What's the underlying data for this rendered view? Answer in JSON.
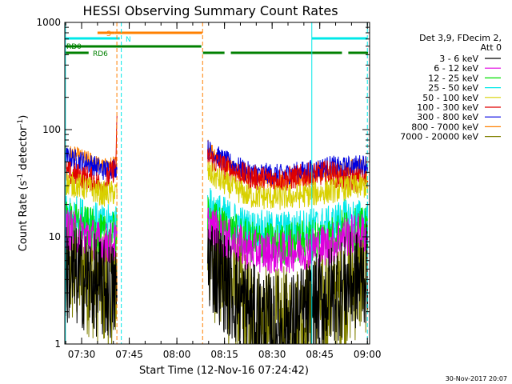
{
  "chart_data": {
    "type": "line",
    "title": "HESSI Observing Summary Count Rates",
    "xlabel": "Start Time (12-Nov-16 07:24:42)",
    "ylabel_main": "Count Rate (s",
    "ylabel_sup1": "-1",
    "ylabel_mid": " detector",
    "ylabel_sup2": "-1",
    "ylabel_end": ")",
    "yscale": "log",
    "ylim": [
      1,
      1000
    ],
    "xlim_minutes": [
      0,
      96
    ],
    "x_ticks": [
      {
        "label": "07:30",
        "m": 5.3
      },
      {
        "label": "07:45",
        "m": 20.3
      },
      {
        "label": "08:00",
        "m": 35.3
      },
      {
        "label": "08:15",
        "m": 50.3
      },
      {
        "label": "08:30",
        "m": 65.3
      },
      {
        "label": "08:45",
        "m": 80.3
      },
      {
        "label": "09:00",
        "m": 95.3
      }
    ],
    "y_ticks": [
      {
        "label": "1",
        "v": 1
      },
      {
        "label": "10",
        "v": 10
      },
      {
        "label": "100",
        "v": 100
      },
      {
        "label": "1000",
        "v": 1000
      }
    ],
    "legend": {
      "header1": "Det 3,9, FDecim 2,",
      "header2": "Att 0",
      "items": [
        {
          "label": "3 - 6 keV",
          "color": "#000000"
        },
        {
          "label": "6 - 12 keV",
          "color": "#e000e0"
        },
        {
          "label": "12 - 25 keV",
          "color": "#00e000"
        },
        {
          "label": "25 - 50 keV",
          "color": "#00e8e8"
        },
        {
          "label": "50 - 100 keV",
          "color": "#d8d000"
        },
        {
          "label": "100 - 300 keV",
          "color": "#e00000"
        },
        {
          "label": "300 - 800 keV",
          "color": "#0000e0"
        },
        {
          "label": "800 - 7000 keV",
          "color": "#ff8000"
        },
        {
          "label": "7000 - 20000 keV",
          "color": "#808000"
        }
      ]
    },
    "flags": [
      {
        "label": "S",
        "color": "#ff8000",
        "segments": [
          [
            10.3,
            15.8
          ],
          [
            15.8,
            43.3
          ]
        ]
      },
      {
        "label": "N",
        "color": "#00e8e8",
        "segments": [
          [
            0,
            17.3
          ],
          [
            77.8,
            95.3
          ]
        ]
      },
      {
        "label": "RD0",
        "color": "#008000",
        "segments": [
          [
            0,
            43.0
          ]
        ]
      },
      {
        "label": "RD6",
        "color": "#008000",
        "segments": [
          [
            0,
            7.5
          ],
          [
            43.5,
            50.3
          ],
          [
            52.3,
            87.3
          ],
          [
            89.3,
            95.5
          ]
        ]
      }
    ],
    "vlines": [
      {
        "m": 0.2,
        "color": "#00e8e8",
        "style": "solid"
      },
      {
        "m": 16.4,
        "color": "#ff8000",
        "style": "dashed"
      },
      {
        "m": 17.8,
        "color": "#00e8e8",
        "style": "dashed"
      },
      {
        "m": 43.4,
        "color": "#ff8000",
        "style": "dashed"
      },
      {
        "m": 77.8,
        "color": "#00e8e8",
        "style": "solid"
      },
      {
        "m": 95.3,
        "color": "#00e8e8",
        "style": "dashed"
      }
    ],
    "orbit_gaps": [
      [
        16.5,
        45.0
      ]
    ],
    "series": [
      {
        "name": "3 - 6 keV",
        "color": "#000000",
        "seg1": [
          [
            0,
            4.5
          ],
          [
            8,
            3.8
          ],
          [
            12,
            3.2
          ],
          [
            16.5,
            3.0
          ]
        ],
        "seg2": [
          [
            45,
            6.5
          ],
          [
            52,
            3.2
          ],
          [
            60,
            1.8
          ],
          [
            65,
            1.5
          ],
          [
            72,
            1.6
          ],
          [
            78,
            2.2
          ],
          [
            86,
            3.2
          ],
          [
            95.5,
            4.5
          ]
        ],
        "noise": 0.12
      },
      {
        "name": "6 - 12 keV",
        "color": "#e000e0",
        "seg1": [
          [
            0,
            12
          ],
          [
            8,
            10
          ],
          [
            12,
            8.5
          ],
          [
            16.5,
            9
          ]
        ],
        "seg2": [
          [
            45,
            13
          ],
          [
            50,
            10
          ],
          [
            58,
            7.5
          ],
          [
            68,
            7
          ],
          [
            78,
            8
          ],
          [
            84,
            8.5
          ],
          [
            87,
            10
          ],
          [
            95.5,
            11
          ]
        ],
        "noise": 0.05
      },
      {
        "name": "12 - 25 keV",
        "color": "#00e000",
        "seg1": [
          [
            0,
            14
          ],
          [
            8,
            12
          ],
          [
            12,
            10
          ],
          [
            16.5,
            11
          ]
        ],
        "seg2": [
          [
            45,
            15
          ],
          [
            50,
            12
          ],
          [
            58,
            9
          ],
          [
            68,
            8.5
          ],
          [
            78,
            9.5
          ],
          [
            84,
            10
          ],
          [
            87,
            11.5
          ],
          [
            95.5,
            12
          ]
        ],
        "noise": 0.05
      },
      {
        "name": "25 - 50 keV",
        "color": "#00e8e8",
        "seg1": [
          [
            0,
            17
          ],
          [
            8,
            15
          ],
          [
            12,
            13
          ],
          [
            16.5,
            14
          ]
        ],
        "seg2": [
          [
            45,
            20
          ],
          [
            50,
            16
          ],
          [
            58,
            12
          ],
          [
            68,
            11.5
          ],
          [
            78,
            12.5
          ],
          [
            84,
            13
          ],
          [
            87,
            15
          ],
          [
            95.5,
            15
          ]
        ],
        "noise": 0.045
      },
      {
        "name": "50 - 100 keV",
        "color": "#d8d000",
        "seg1": [
          [
            0,
            32
          ],
          [
            8,
            28
          ],
          [
            12,
            25
          ],
          [
            16.5,
            26
          ]
        ],
        "seg2": [
          [
            45,
            40
          ],
          [
            50,
            32
          ],
          [
            58,
            24
          ],
          [
            68,
            23
          ],
          [
            78,
            25
          ],
          [
            84,
            27
          ],
          [
            87,
            28
          ],
          [
            95.5,
            30
          ]
        ],
        "noise": 0.03
      },
      {
        "name": "100 - 300 keV",
        "color": "#e00000",
        "seg1": [
          [
            0,
            40
          ],
          [
            8,
            35
          ],
          [
            12,
            30
          ],
          [
            16,
            45
          ],
          [
            16.5,
            120
          ]
        ],
        "seg2": [
          [
            45,
            55
          ],
          [
            50,
            45
          ],
          [
            58,
            36
          ],
          [
            68,
            34
          ],
          [
            78,
            38
          ],
          [
            84,
            40
          ],
          [
            87,
            35
          ],
          [
            95.5,
            33
          ]
        ],
        "noise": 0.03
      },
      {
        "name": "300 - 800 keV",
        "color": "#0000e0",
        "seg1": [
          [
            0,
            56
          ],
          [
            8,
            48
          ],
          [
            12,
            42
          ],
          [
            16.5,
            45
          ]
        ],
        "seg2": [
          [
            45,
            65
          ],
          [
            50,
            52
          ],
          [
            58,
            40
          ],
          [
            68,
            38
          ],
          [
            78,
            42
          ],
          [
            84,
            46
          ],
          [
            87,
            44
          ],
          [
            95.5,
            48
          ]
        ],
        "noise": 0.025
      },
      {
        "name": "800 - 7000 keV",
        "color": "#ff8000",
        "seg1": [
          [
            0,
            62
          ],
          [
            8,
            52
          ],
          [
            12,
            45
          ],
          [
            16.5,
            48
          ]
        ],
        "seg2": [
          [
            45,
            70
          ],
          [
            50,
            50
          ],
          [
            58,
            36
          ],
          [
            68,
            33
          ],
          [
            78,
            36
          ],
          [
            84,
            40
          ],
          [
            87,
            42
          ],
          [
            95.5,
            48
          ]
        ],
        "noise": 0.02
      },
      {
        "name": "7000 - 20000 keV",
        "color": "#808000",
        "seg1": [
          [
            0,
            5.5
          ],
          [
            8,
            4.5
          ],
          [
            12,
            3.5
          ],
          [
            16.5,
            3.8
          ]
        ],
        "seg2": [
          [
            45,
            8
          ],
          [
            52,
            3.5
          ],
          [
            60,
            1.6
          ],
          [
            65,
            1.3
          ],
          [
            72,
            1.4
          ],
          [
            78,
            2.0
          ],
          [
            86,
            3.0
          ],
          [
            95.5,
            5.0
          ]
        ],
        "noise": 0.15
      }
    ]
  },
  "footer": {
    "timestamp": "30-Nov-2017 20:07"
  }
}
